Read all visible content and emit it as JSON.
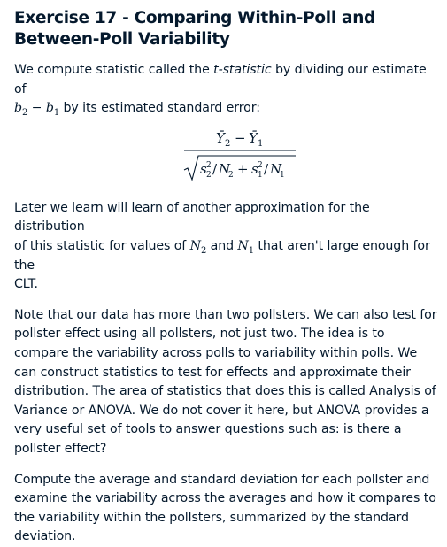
{
  "title": "Exercise 17 - Comparing Within-Poll and Between-Poll Variability",
  "para1": {
    "before": "We compute statistic called the ",
    "term": "t-statistic",
    "middle": " by dividing our estimate of",
    "b2": "b",
    "b2_sub": "2",
    "minus": " − ",
    "b1": "b",
    "b1_sub": "1",
    "after": " by its estimated standard error:"
  },
  "formula": {
    "numerator_left": "Ȳ",
    "numerator_left_sub": "2",
    "numerator_minus": "−",
    "numerator_right": "Ȳ",
    "numerator_right_sub": "1",
    "s2": "s",
    "s2_sup": "2",
    "s2_sub": "2",
    "slash1": "/",
    "N2": "N",
    "N2_sub": "2",
    "plus": "+",
    "s1": "s",
    "s1_sup": "2",
    "s1_sub": "1",
    "slash2": "/",
    "N1": "N",
    "N1_sub": "1"
  },
  "para2": {
    "line1": "Later we learn will learn of another approximation for the distribution",
    "line2_before": "of this statistic for values of ",
    "N2": "N",
    "N2_sub": "2",
    "and": " and ",
    "N1": "N",
    "N1_sub": "1",
    "line2_after": " that aren't large enough for the",
    "line3": "CLT."
  },
  "para3": "Note that our data has more than two pollsters. We can also test for pollster effect using all pollsters, not just two. The idea is to compare the variability across polls to variability within polls. We can construct statistics to test for effects and approximate their distribution. The area of statistics that does this is called Analysis of Variance or ANOVA. We do not cover it here, but ANOVA provides a very useful set of tools to answer questions such as: is there a pollster effect?",
  "para4": "Compute the average and standard deviation for each pollster and examine the variability across the averages and how it compares to the variability within the pollsters, summarized by the standard deviation."
}
